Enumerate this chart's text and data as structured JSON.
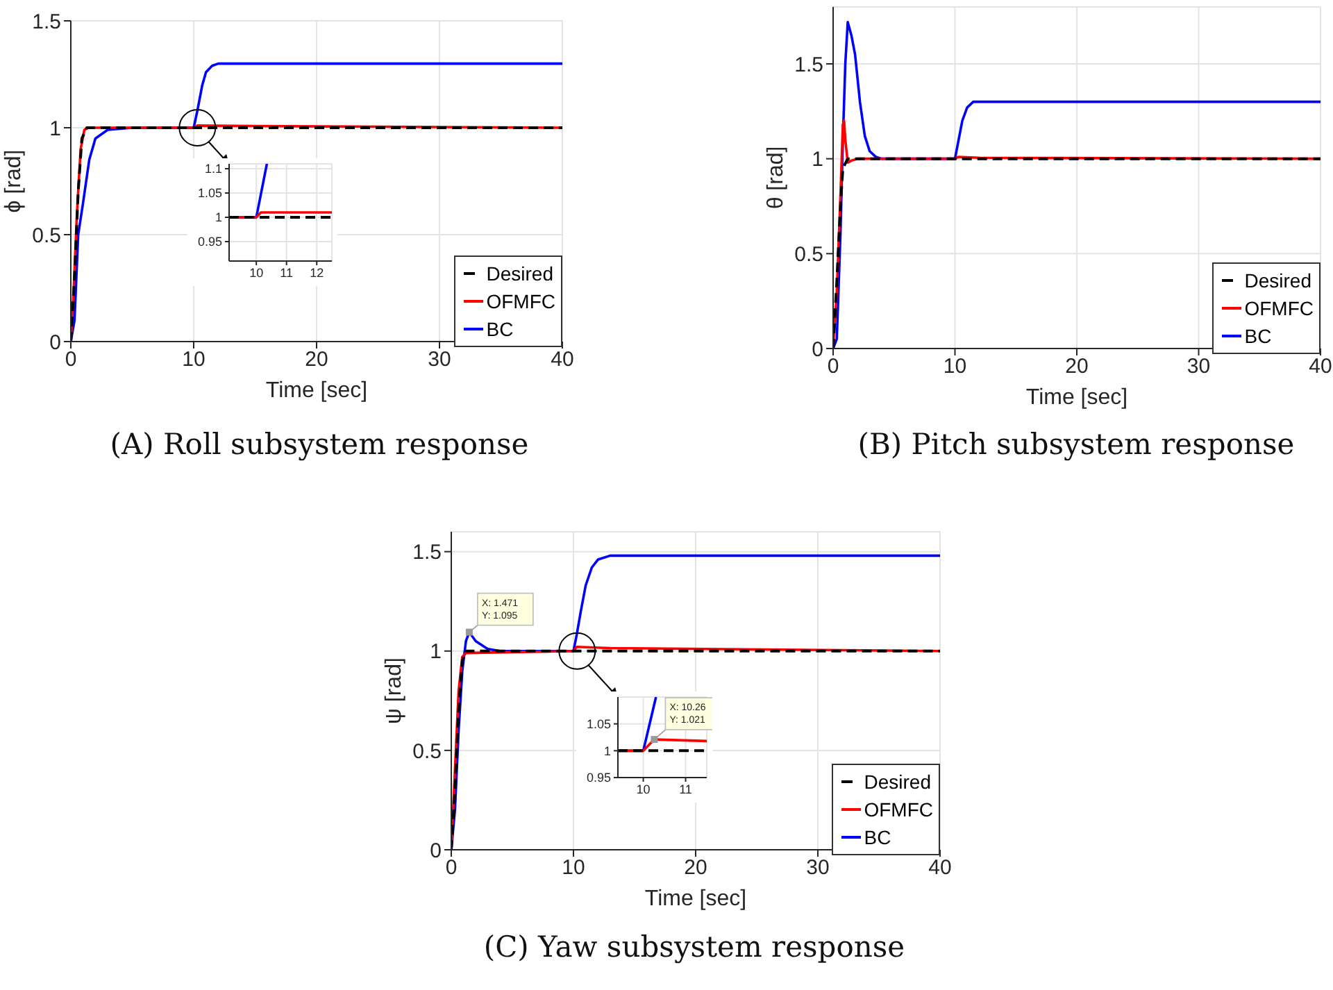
{
  "chart_data": [
    {
      "type": "line",
      "title": "(A) Roll subsystem response",
      "xlabel": "Time [sec]",
      "ylabel": "ϕ [rad]",
      "xlim": [
        0,
        40
      ],
      "xticks": [
        0,
        10,
        20,
        30,
        40
      ],
      "ylim": [
        0,
        1.5
      ],
      "yticks": [
        0,
        0.5,
        1,
        1.5
      ],
      "grid": true,
      "legend": "bottom right",
      "series": [
        {
          "name": "Desired",
          "color": "#000000",
          "line_style": "dashed",
          "x": [
            0,
            0.3,
            0.6,
            0.9,
            1.3,
            40
          ],
          "values": [
            0,
            0.3,
            0.7,
            0.95,
            1,
            1
          ]
        },
        {
          "name": "OFMFC",
          "color": "#ff0000",
          "line_style": "solid",
          "x": [
            0,
            0.2,
            0.5,
            0.8,
            1.1,
            1.4,
            10,
            10.3,
            15,
            40
          ],
          "values": [
            0,
            0.2,
            0.6,
            0.9,
            0.99,
            1,
            1,
            1.01,
            1.008,
            1
          ]
        },
        {
          "name": "BC",
          "color": "#0000ff",
          "line_style": "solid",
          "x": [
            0,
            0.3,
            0.6,
            1,
            1.5,
            2,
            3,
            5,
            10,
            10.3,
            10.7,
            11,
            11.5,
            12,
            13,
            40
          ],
          "values": [
            0,
            0.1,
            0.5,
            0.65,
            0.85,
            0.95,
            0.99,
            1,
            1,
            1.08,
            1.2,
            1.26,
            1.29,
            1.3,
            1.3,
            1.3
          ]
        }
      ]
    },
    {
      "type": "line",
      "xlim": [
        9.1,
        12.5
      ],
      "xticks": [
        10,
        11,
        12
      ],
      "ylim": [
        0.91,
        1.11
      ],
      "yticks": [
        0.95,
        1,
        1.05,
        1.1
      ],
      "grid": true,
      "series": [
        {
          "color": "#000000",
          "line_style": "dashed",
          "x": [
            9.1,
            12.5
          ],
          "values": [
            1,
            1
          ]
        },
        {
          "color": "#ff0000",
          "line_style": "solid",
          "x": [
            9.1,
            10,
            10.15,
            12.5
          ],
          "values": [
            1,
            1,
            1.01,
            1.01
          ]
        },
        {
          "color": "#0000ff",
          "line_style": "solid",
          "x": [
            9.1,
            10,
            10.35
          ],
          "values": [
            1,
            1,
            1.11
          ]
        }
      ]
    },
    {
      "type": "line",
      "title": "(B) Pitch subsystem response",
      "xlabel": "Time [sec]",
      "ylabel": "θ [rad]",
      "xlim": [
        0,
        40
      ],
      "xticks": [
        0,
        10,
        20,
        30,
        40
      ],
      "ylim": [
        0,
        1.8
      ],
      "yticks": [
        0,
        0.5,
        1,
        1.5
      ],
      "grid": true,
      "legend": "bottom right",
      "series": [
        {
          "name": "Desired",
          "color": "#000000",
          "line_style": "dashed",
          "x": [
            0,
            0.3,
            0.6,
            0.8,
            1.2,
            40
          ],
          "values": [
            0,
            0.35,
            0.75,
            0.95,
            1,
            1
          ]
        },
        {
          "name": "OFMFC",
          "color": "#ff0000",
          "line_style": "solid",
          "x": [
            0,
            0.3,
            0.6,
            0.8,
            0.9,
            1,
            1.2,
            1.5,
            2,
            10,
            10.3,
            12,
            40
          ],
          "values": [
            0,
            0.3,
            0.8,
            1.18,
            1.2,
            1.1,
            0.98,
            0.99,
            1,
            1,
            1.01,
            1.005,
            1
          ]
        },
        {
          "name": "BC",
          "color": "#0000ff",
          "line_style": "solid",
          "x": [
            0,
            0.3,
            0.6,
            0.8,
            1,
            1.2,
            1.5,
            1.8,
            2.2,
            2.6,
            3,
            3.5,
            4,
            10,
            10.3,
            10.6,
            11,
            11.5,
            12,
            40
          ],
          "values": [
            0,
            0.05,
            0.6,
            1.1,
            1.5,
            1.72,
            1.65,
            1.55,
            1.3,
            1.12,
            1.04,
            1.01,
            1,
            1,
            1.1,
            1.2,
            1.27,
            1.3,
            1.3,
            1.3
          ]
        }
      ]
    },
    {
      "type": "line",
      "title": "(C) Yaw subsystem response",
      "xlabel": "Time [sec]",
      "ylabel": "ψ [rad]",
      "xlim": [
        0,
        40
      ],
      "xticks": [
        0,
        10,
        20,
        30,
        40
      ],
      "ylim": [
        0,
        1.6
      ],
      "yticks": [
        0,
        0.5,
        1,
        1.5
      ],
      "grid": true,
      "legend": "bottom right",
      "annotations": [
        {
          "text": "X: 1.471\nY: 1.095",
          "x": 1.471,
          "y": 1.095
        }
      ],
      "series": [
        {
          "name": "Desired",
          "color": "#000000",
          "line_style": "dashed",
          "x": [
            0,
            0.3,
            0.6,
            0.9,
            1.2,
            40
          ],
          "values": [
            0,
            0.3,
            0.7,
            0.95,
            1,
            1
          ]
        },
        {
          "name": "OFMFC",
          "color": "#ff0000",
          "line_style": "solid",
          "x": [
            0,
            0.3,
            0.6,
            0.9,
            1.2,
            10,
            10.26,
            13,
            40
          ],
          "values": [
            0,
            0.4,
            0.8,
            0.97,
            0.99,
            1,
            1.021,
            1.015,
            1
          ]
        },
        {
          "name": "BC",
          "color": "#0000ff",
          "line_style": "solid",
          "x": [
            0,
            0.3,
            0.6,
            0.9,
            1.2,
            1.471,
            2,
            3,
            4,
            10,
            10.26,
            10.6,
            11,
            11.5,
            12,
            13,
            40
          ],
          "values": [
            0,
            0.2,
            0.6,
            0.9,
            1.05,
            1.095,
            1.05,
            1.01,
            1,
            1,
            1.08,
            1.2,
            1.33,
            1.42,
            1.46,
            1.48,
            1.48
          ]
        }
      ]
    },
    {
      "type": "line",
      "xlim": [
        9.4,
        11.5
      ],
      "xticks": [
        10,
        11
      ],
      "ylim": [
        0.95,
        1.1
      ],
      "yticks": [
        0.95,
        1,
        1.05
      ],
      "grid": true,
      "annotations": [
        {
          "text": "X: 10.26\nY: 1.021",
          "x": 10.26,
          "y": 1.021
        }
      ],
      "series": [
        {
          "color": "#000000",
          "line_style": "dashed",
          "x": [
            9.4,
            11.5
          ],
          "values": [
            1,
            1
          ]
        },
        {
          "color": "#ff0000",
          "line_style": "solid",
          "x": [
            9.4,
            10,
            10.26,
            11.5
          ],
          "values": [
            1,
            1,
            1.021,
            1.018
          ]
        },
        {
          "color": "#0000ff",
          "line_style": "solid",
          "x": [
            9.4,
            10,
            10.3
          ],
          "values": [
            1,
            1,
            1.1
          ]
        }
      ]
    }
  ]
}
